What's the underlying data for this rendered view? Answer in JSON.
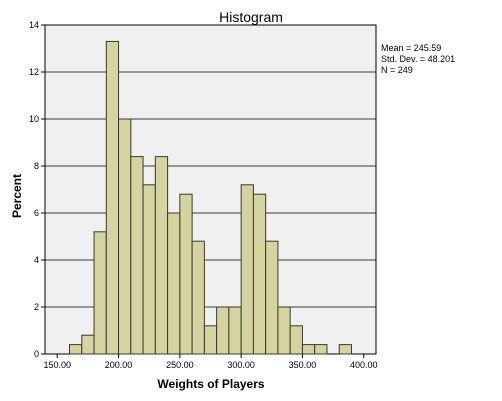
{
  "chart_data": {
    "type": "bar",
    "title": "Histogram",
    "xlabel": "Weights of Players",
    "ylabel": "Percent",
    "xlim": [
      140,
      410
    ],
    "ylim": [
      0,
      14
    ],
    "xticks": [
      150,
      200,
      250,
      300,
      350,
      400
    ],
    "xtick_labels": [
      "150.00",
      "200.00",
      "250.00",
      "300.00",
      "350.00",
      "400.00"
    ],
    "yticks": [
      0,
      2,
      4,
      6,
      8,
      10,
      12,
      14
    ],
    "ytick_labels": [
      "0",
      "2",
      "4",
      "6",
      "8",
      "10",
      "12",
      "14"
    ],
    "grid": true,
    "bin_width": 10,
    "bin_starts": [
      160,
      170,
      180,
      190,
      200,
      210,
      220,
      230,
      240,
      250,
      260,
      270,
      280,
      290,
      300,
      310,
      320,
      330,
      340,
      350,
      360,
      370,
      380
    ],
    "values": [
      0.4,
      0.8,
      5.2,
      13.3,
      10.0,
      8.4,
      7.2,
      8.4,
      6.0,
      6.8,
      4.8,
      1.2,
      2.0,
      2.0,
      7.2,
      6.8,
      4.8,
      2.0,
      1.2,
      0.4,
      0.4,
      0.0,
      0.4
    ],
    "stats": {
      "mean": "Mean = 245.59",
      "std": "Std. Dev. = 48.201",
      "n": "N = 249"
    },
    "colors": {
      "bar_fill": "#d6d3a3",
      "bar_stroke": "#3a3a28",
      "plot_bg": "#f0f0f0",
      "grid": "#000000"
    }
  }
}
